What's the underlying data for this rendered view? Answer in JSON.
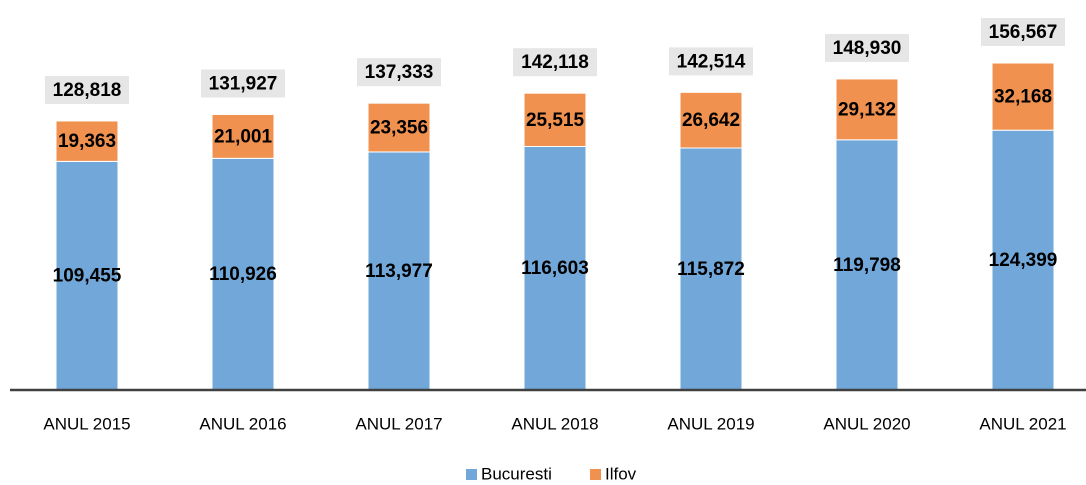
{
  "chart_data": {
    "type": "stacked_bar",
    "categories": [
      "ANUL 2015",
      "ANUL 2016",
      "ANUL 2017",
      "ANUL 2018",
      "ANUL 2019",
      "ANUL 2020",
      "ANUL 2021"
    ],
    "series": [
      {
        "name": "Bucuresti",
        "color": "#72a7da",
        "values": [
          109455,
          110926,
          113977,
          116603,
          115872,
          119798,
          124399
        ],
        "value_labels": [
          "109,455",
          "110,926",
          "113,977",
          "116,603",
          "115,872",
          "119,798",
          "124,399"
        ]
      },
      {
        "name": "Ilfov",
        "color": "#f0914f",
        "values": [
          19363,
          21001,
          23356,
          25515,
          26642,
          29132,
          32168
        ],
        "value_labels": [
          "19,363",
          "21,001",
          "23,356",
          "25,515",
          "26,642",
          "29,132",
          "32,168"
        ]
      }
    ],
    "totals": [
      128818,
      131927,
      137333,
      142118,
      142514,
      148930,
      156567
    ],
    "total_labels": [
      "128,818",
      "131,927",
      "137,333",
      "142,118",
      "142,514",
      "148,930",
      "156,567"
    ],
    "legend": "bottom"
  }
}
